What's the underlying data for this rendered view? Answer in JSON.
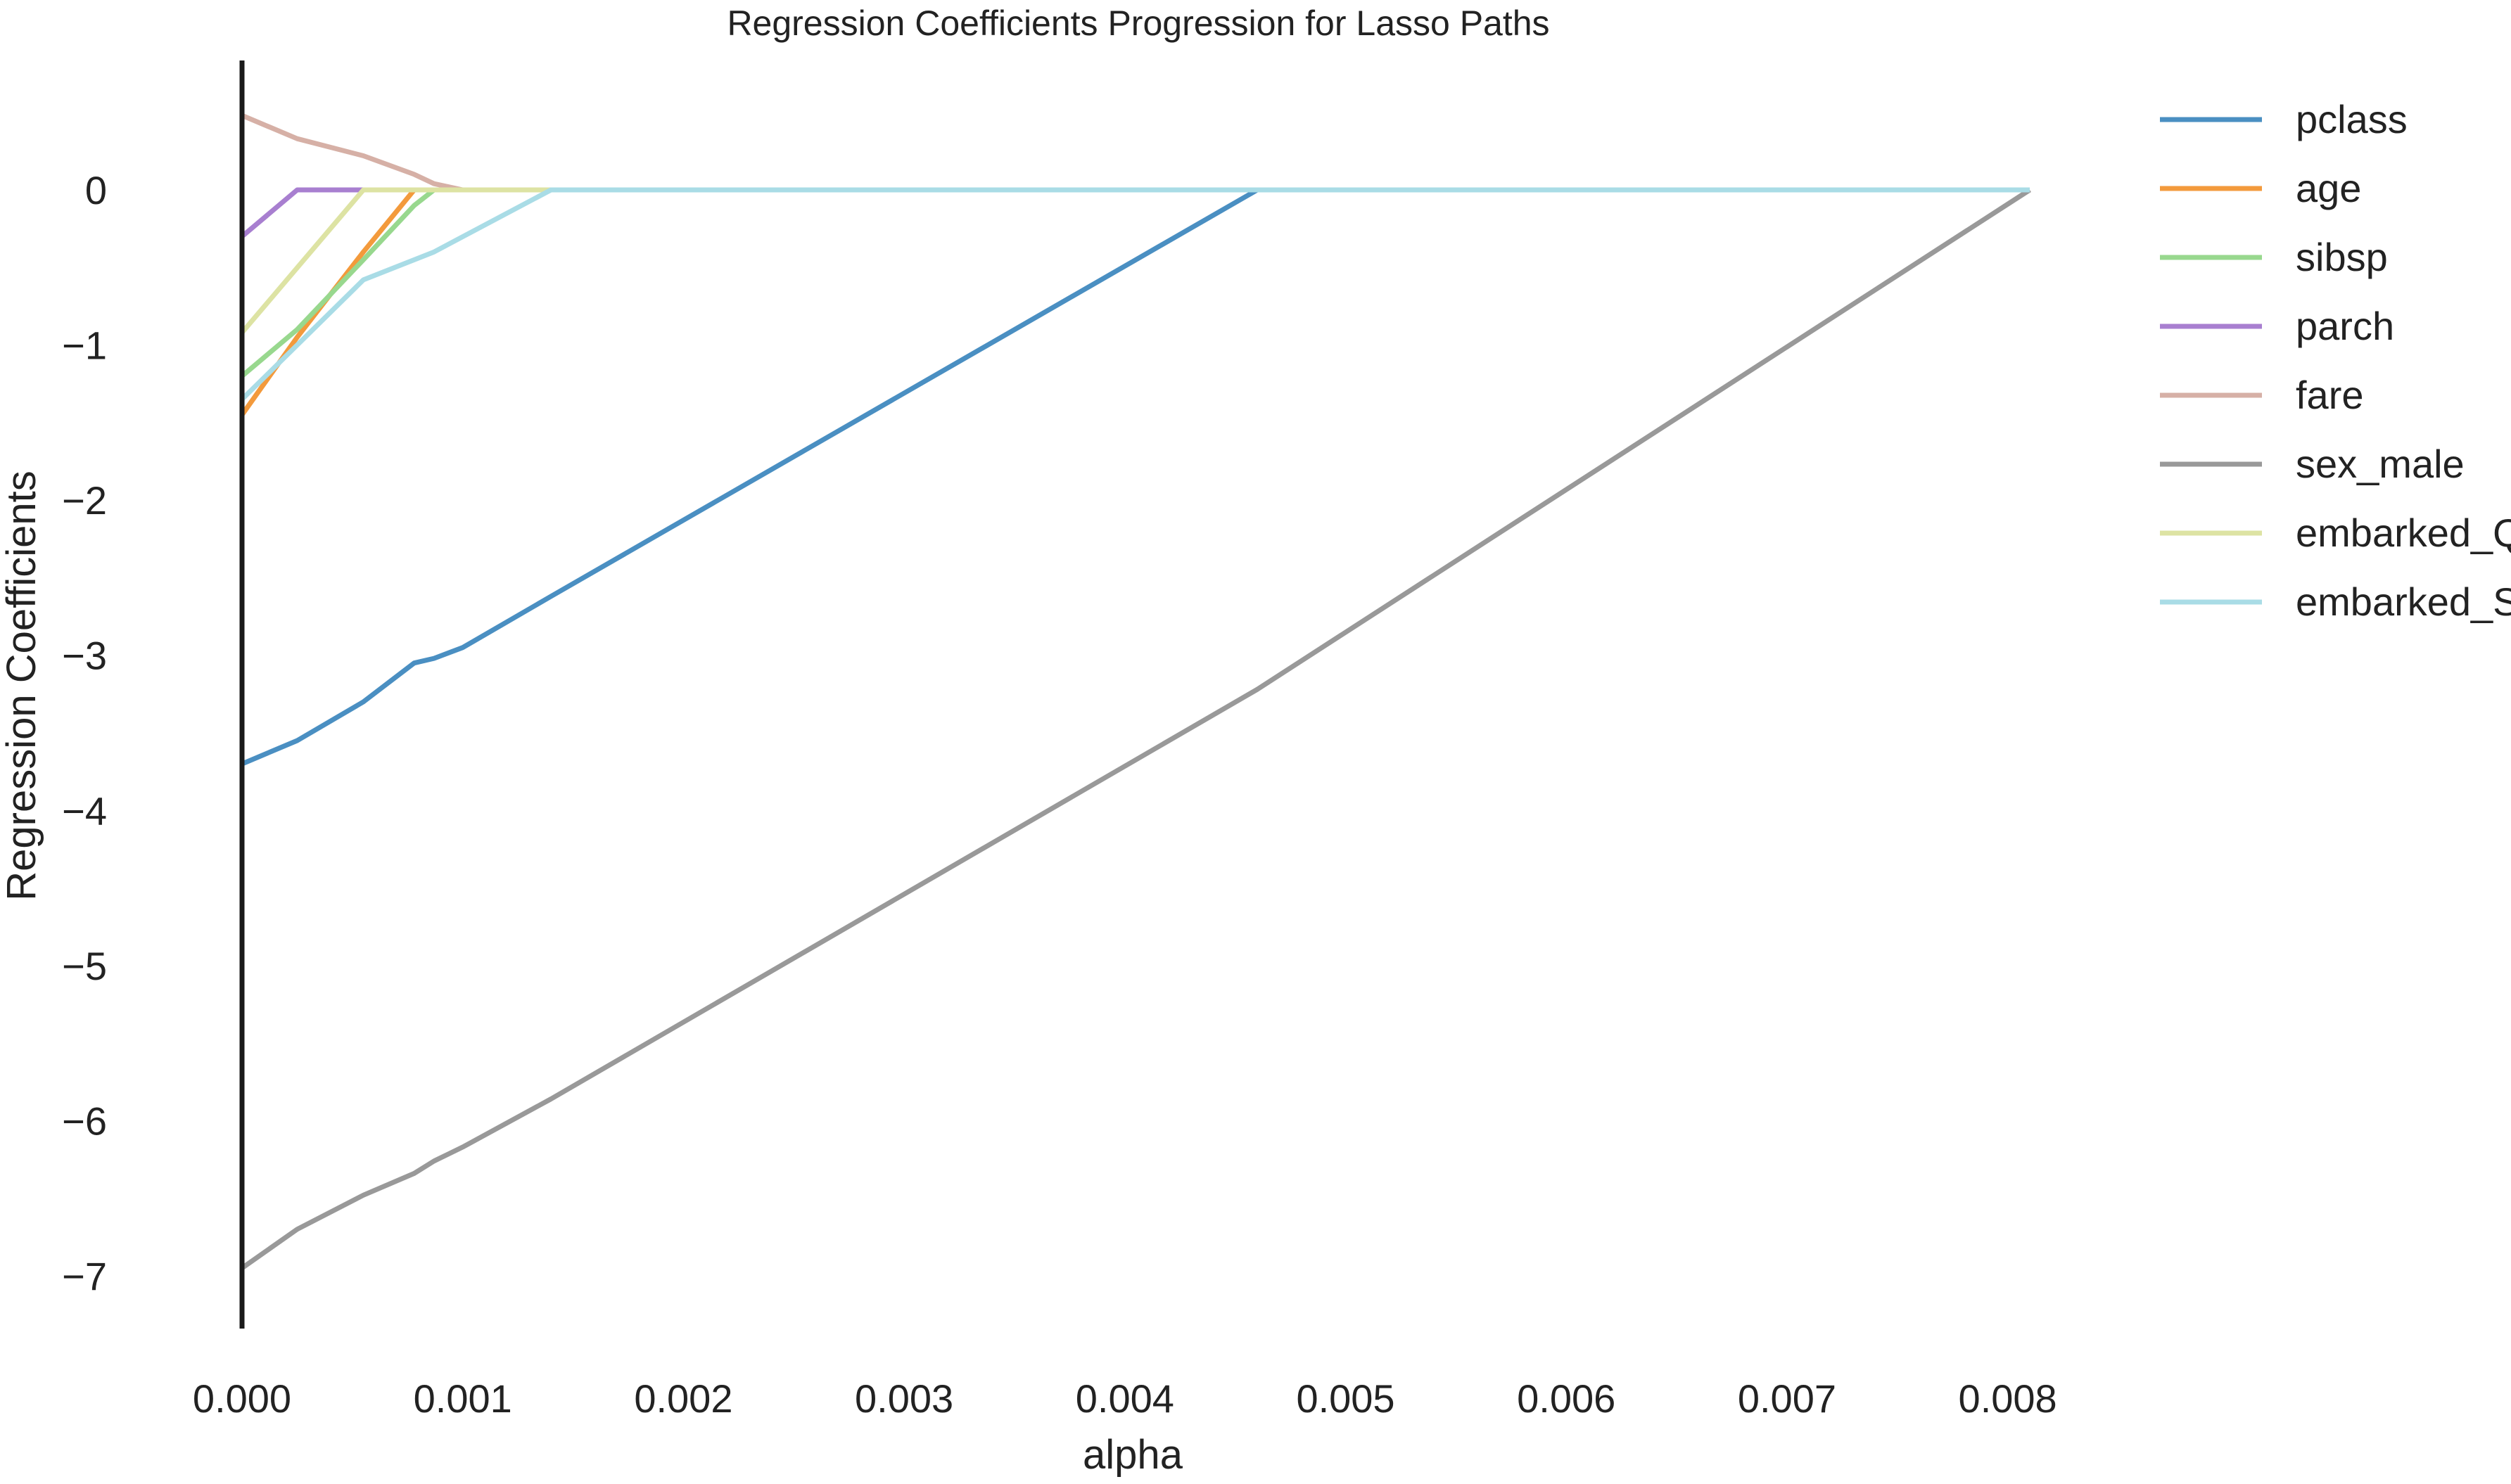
{
  "chart_data": {
    "type": "line",
    "title": "Regression Coefficients Progression for Lasso Paths",
    "xlabel": "alpha",
    "ylabel": "Regression Coefficients",
    "xlim": [
      -0.0001,
      0.0083
    ],
    "ylim": [
      -7.35,
      0.8
    ],
    "x_ticks": [
      0.0,
      0.001,
      0.002,
      0.003,
      0.004,
      0.005,
      0.006,
      0.007,
      0.008
    ],
    "x_tick_labels": [
      "0.000",
      "0.001",
      "0.002",
      "0.003",
      "0.004",
      "0.005",
      "0.006",
      "0.007",
      "0.008"
    ],
    "y_ticks": [
      0,
      -1,
      -2,
      -3,
      -4,
      -5,
      -6,
      -7
    ],
    "y_tick_labels": [
      "0",
      "−1",
      "−2",
      "−3",
      "−4",
      "−5",
      "−6",
      "−7"
    ],
    "grid": false,
    "legend_position": "right",
    "series": [
      {
        "name": "pclass",
        "color": "#4a8fc2",
        "x": [
          0,
          0.00025,
          0.00055,
          0.00078,
          0.00087,
          0.001,
          0.0014,
          0.0046,
          0.0081
        ],
        "y": [
          -3.7,
          -3.55,
          -3.3,
          -3.05,
          -3.02,
          -2.95,
          -2.62,
          0,
          0
        ]
      },
      {
        "name": "age",
        "color": "#f39a3c",
        "x": [
          0,
          0.00025,
          0.00055,
          0.00078,
          0.0081
        ],
        "y": [
          -1.45,
          -0.95,
          -0.4,
          0,
          0
        ]
      },
      {
        "name": "sibsp",
        "color": "#98d88e",
        "x": [
          0,
          0.00025,
          0.00055,
          0.00078,
          0.00087,
          0.0081
        ],
        "y": [
          -1.2,
          -0.9,
          -0.45,
          -0.1,
          0,
          0
        ]
      },
      {
        "name": "parch",
        "color": "#a87fd0",
        "x": [
          0,
          0.00025,
          0.0081
        ],
        "y": [
          -0.3,
          0,
          0
        ]
      },
      {
        "name": "fare",
        "color": "#d6b0a6",
        "x": [
          0,
          0.00025,
          0.00055,
          0.00078,
          0.00087,
          0.001,
          0.0081
        ],
        "y": [
          0.48,
          0.33,
          0.22,
          0.1,
          0.04,
          0,
          0
        ]
      },
      {
        "name": "sex_male",
        "color": "#999999",
        "x": [
          0,
          0.00025,
          0.00055,
          0.00078,
          0.00087,
          0.001,
          0.0014,
          0.0046,
          0.0081
        ],
        "y": [
          -6.95,
          -6.7,
          -6.48,
          -6.34,
          -6.26,
          -6.17,
          -5.86,
          -3.22,
          0
        ]
      },
      {
        "name": "embarked_Q",
        "color": "#dde3a3",
        "x": [
          0,
          0.00055,
          0.0081
        ],
        "y": [
          -0.92,
          0,
          0
        ]
      },
      {
        "name": "embarked_S",
        "color": "#a9dce6",
        "x": [
          0,
          0.00055,
          0.00087,
          0.0014,
          0.0081
        ],
        "y": [
          -1.35,
          -0.58,
          -0.4,
          0,
          0
        ]
      }
    ]
  }
}
